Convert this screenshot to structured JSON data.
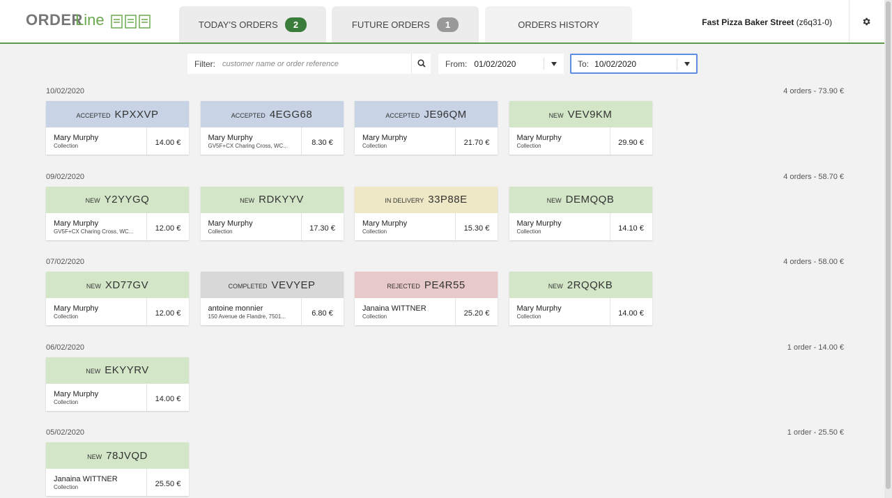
{
  "header": {
    "logo_order": "ORDER",
    "logo_line": "Line",
    "tabs": [
      {
        "label": "TODAY'S ORDERS",
        "badge": 2
      },
      {
        "label": "FUTURE ORDERS",
        "badge": 1
      },
      {
        "label": "ORDERS HISTORY"
      }
    ],
    "store": "Fast Pizza Baker Street",
    "store_id": "(z6q31-0)"
  },
  "filters": {
    "filter_label": "Filter:",
    "filter_placeholder": "customer name or order reference",
    "from_label": "From:",
    "from_value": "01/02/2020",
    "to_label": "To:",
    "to_value": "10/02/2020"
  },
  "groups": [
    {
      "date": "10/02/2020",
      "summary": "4 orders - 73.90 €",
      "orders": [
        {
          "status": "ACCEPTED",
          "ref": "KPXXVP",
          "color": "#c8d4e5",
          "customer": "Mary Murphy",
          "detail": "Collection",
          "price": "14.00 €"
        },
        {
          "status": "ACCEPTED",
          "ref": "4EGG68",
          "color": "#c8d4e5",
          "customer": "Mary Murphy",
          "detail": "GV5F+CX Charing Cross, WC...",
          "price": "8.30 €"
        },
        {
          "status": "ACCEPTED",
          "ref": "JE96QM",
          "color": "#c8d4e5",
          "customer": "Mary Murphy",
          "detail": "Collection",
          "price": "21.70 €"
        },
        {
          "status": "NEW",
          "ref": "VEV9KM",
          "color": "#d3e6c8",
          "customer": "Mary Murphy",
          "detail": "Collection",
          "price": "29.90 €"
        }
      ]
    },
    {
      "date": "09/02/2020",
      "summary": "4 orders - 58.70 €",
      "orders": [
        {
          "status": "NEW",
          "ref": "Y2YYGQ",
          "color": "#d3e6c8",
          "customer": "Mary Murphy",
          "detail": "GV5F+CX Charing Cross, WC...",
          "price": "12.00 €"
        },
        {
          "status": "NEW",
          "ref": "RDKYYV",
          "color": "#d3e6c8",
          "customer": "Mary Murphy",
          "detail": "Collection",
          "price": "17.30 €"
        },
        {
          "status": "IN DELIVERY",
          "ref": "33P88E",
          "color": "#efe8c7",
          "customer": "Mary Murphy",
          "detail": "Collection",
          "price": "15.30 €"
        },
        {
          "status": "NEW",
          "ref": "DEMQQB",
          "color": "#d3e6c8",
          "customer": "Mary Murphy",
          "detail": "Collection",
          "price": "14.10 €"
        }
      ]
    },
    {
      "date": "07/02/2020",
      "summary": "4 orders - 58.00 €",
      "orders": [
        {
          "status": "NEW",
          "ref": "XD77GV",
          "color": "#d3e6c8",
          "customer": "Mary Murphy",
          "detail": "Collection",
          "price": "12.00 €"
        },
        {
          "status": "COMPLETED",
          "ref": "VEVYEP",
          "color": "#d8d8d8",
          "customer": "antoine monnier",
          "detail": "150 Avenue de Flandre, 7501...",
          "price": "6.80 €"
        },
        {
          "status": "REJECTED",
          "ref": "PE4R55",
          "color": "#e8c9c9",
          "customer": "Janaina WITTNER",
          "detail": "Collection",
          "price": "25.20 €"
        },
        {
          "status": "NEW",
          "ref": "2RQQKB",
          "color": "#d3e6c8",
          "customer": "Mary Murphy",
          "detail": "Collection",
          "price": "14.00 €"
        }
      ]
    },
    {
      "date": "06/02/2020",
      "summary": "1 order - 14.00 €",
      "orders": [
        {
          "status": "NEW",
          "ref": "EKYYRV",
          "color": "#d3e6c8",
          "customer": "Mary Murphy",
          "detail": "Collection",
          "price": "14.00 €"
        }
      ]
    },
    {
      "date": "05/02/2020",
      "summary": "1 order - 25.50 €",
      "orders": [
        {
          "status": "NEW",
          "ref": "78JVQD",
          "color": "#d3e6c8",
          "customer": "Janaina WITTNER",
          "detail": "Collection",
          "price": "25.50 €"
        }
      ]
    }
  ]
}
